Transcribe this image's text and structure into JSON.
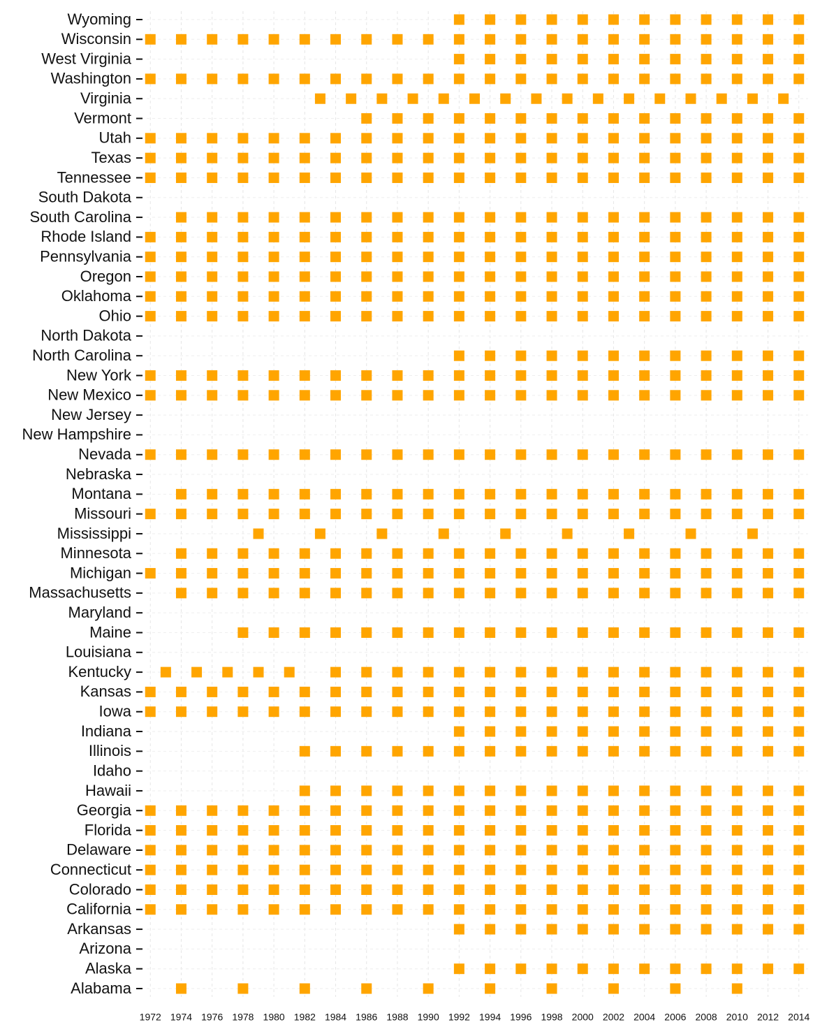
{
  "chart_data": {
    "type": "dot-matrix",
    "color": "#ffa500",
    "grid": true,
    "xlim": [
      1971.4,
      2014.6
    ],
    "xticks": [
      1972,
      1974,
      1976,
      1978,
      1980,
      1982,
      1984,
      1986,
      1988,
      1990,
      1992,
      1994,
      1996,
      1998,
      2000,
      2002,
      2004,
      2006,
      2008,
      2010,
      2012,
      2014
    ],
    "categories": [
      "Wyoming",
      "Wisconsin",
      "West Virginia",
      "Washington",
      "Virginia",
      "Vermont",
      "Utah",
      "Texas",
      "Tennessee",
      "South Dakota",
      "South Carolina",
      "Rhode Island",
      "Pennsylvania",
      "Oregon",
      "Oklahoma",
      "Ohio",
      "North Dakota",
      "North Carolina",
      "New York",
      "New Mexico",
      "New Jersey",
      "New Hampshire",
      "Nevada",
      "Nebraska",
      "Montana",
      "Missouri",
      "Mississippi",
      "Minnesota",
      "Michigan",
      "Massachusetts",
      "Maryland",
      "Maine",
      "Louisiana",
      "Kentucky",
      "Kansas",
      "Iowa",
      "Indiana",
      "Illinois",
      "Idaho",
      "Hawaii",
      "Georgia",
      "Florida",
      "Delaware",
      "Connecticut",
      "Colorado",
      "California",
      "Arkansas",
      "Arizona",
      "Alaska",
      "Alabama"
    ],
    "values": [
      [
        1992,
        1994,
        1996,
        1998,
        2000,
        2002,
        2004,
        2006,
        2008,
        2010,
        2012,
        2014
      ],
      [
        1972,
        1974,
        1976,
        1978,
        1980,
        1982,
        1984,
        1986,
        1988,
        1990,
        1992,
        1994,
        1996,
        1998,
        2000,
        2002,
        2004,
        2006,
        2008,
        2010,
        2012,
        2014
      ],
      [
        1992,
        1994,
        1996,
        1998,
        2000,
        2002,
        2004,
        2006,
        2008,
        2010,
        2012,
        2014
      ],
      [
        1972,
        1974,
        1976,
        1978,
        1980,
        1982,
        1984,
        1986,
        1988,
        1990,
        1992,
        1994,
        1996,
        1998,
        2000,
        2002,
        2004,
        2006,
        2008,
        2010,
        2012,
        2014
      ],
      [
        1983,
        1985,
        1987,
        1989,
        1991,
        1993,
        1995,
        1997,
        1999,
        2001,
        2003,
        2005,
        2007,
        2009,
        2011,
        2013
      ],
      [
        1986,
        1988,
        1990,
        1992,
        1994,
        1996,
        1998,
        2000,
        2002,
        2004,
        2006,
        2008,
        2010,
        2012,
        2014
      ],
      [
        1972,
        1974,
        1976,
        1978,
        1980,
        1982,
        1984,
        1986,
        1988,
        1990,
        1992,
        1994,
        1996,
        1998,
        2000,
        2002,
        2004,
        2006,
        2008,
        2010,
        2012,
        2014
      ],
      [
        1972,
        1974,
        1976,
        1978,
        1980,
        1982,
        1984,
        1986,
        1988,
        1990,
        1992,
        1994,
        1996,
        1998,
        2000,
        2002,
        2004,
        2006,
        2008,
        2010,
        2012,
        2014
      ],
      [
        1972,
        1974,
        1976,
        1978,
        1980,
        1982,
        1984,
        1986,
        1988,
        1990,
        1992,
        1994,
        1996,
        1998,
        2000,
        2002,
        2004,
        2006,
        2008,
        2010,
        2012,
        2014
      ],
      [],
      [
        1974,
        1976,
        1978,
        1980,
        1982,
        1984,
        1986,
        1988,
        1990,
        1992,
        1994,
        1996,
        1998,
        2000,
        2002,
        2004,
        2006,
        2008,
        2010,
        2012,
        2014
      ],
      [
        1972,
        1974,
        1976,
        1978,
        1980,
        1982,
        1984,
        1986,
        1988,
        1990,
        1992,
        1994,
        1996,
        1998,
        2000,
        2002,
        2004,
        2006,
        2008,
        2010,
        2012,
        2014
      ],
      [
        1972,
        1974,
        1976,
        1978,
        1980,
        1982,
        1984,
        1986,
        1988,
        1990,
        1992,
        1994,
        1996,
        1998,
        2000,
        2002,
        2004,
        2006,
        2008,
        2010,
        2012,
        2014
      ],
      [
        1972,
        1974,
        1976,
        1978,
        1980,
        1982,
        1984,
        1986,
        1988,
        1990,
        1992,
        1994,
        1996,
        1998,
        2000,
        2002,
        2004,
        2006,
        2008,
        2010,
        2012,
        2014
      ],
      [
        1972,
        1974,
        1976,
        1978,
        1980,
        1982,
        1984,
        1986,
        1988,
        1990,
        1992,
        1994,
        1996,
        1998,
        2000,
        2002,
        2004,
        2006,
        2008,
        2010,
        2012,
        2014
      ],
      [
        1972,
        1974,
        1976,
        1978,
        1980,
        1982,
        1984,
        1986,
        1988,
        1990,
        1992,
        1994,
        1996,
        1998,
        2000,
        2002,
        2004,
        2006,
        2008,
        2010,
        2012,
        2014
      ],
      [],
      [
        1992,
        1994,
        1996,
        1998,
        2000,
        2002,
        2004,
        2006,
        2008,
        2010,
        2012,
        2014
      ],
      [
        1972,
        1974,
        1976,
        1978,
        1980,
        1982,
        1984,
        1986,
        1988,
        1990,
        1992,
        1994,
        1996,
        1998,
        2000,
        2002,
        2004,
        2006,
        2008,
        2010,
        2012,
        2014
      ],
      [
        1972,
        1974,
        1976,
        1978,
        1980,
        1982,
        1984,
        1986,
        1988,
        1990,
        1992,
        1994,
        1996,
        1998,
        2000,
        2002,
        2004,
        2006,
        2008,
        2010,
        2012,
        2014
      ],
      [],
      [],
      [
        1972,
        1974,
        1976,
        1978,
        1980,
        1982,
        1984,
        1986,
        1988,
        1990,
        1992,
        1994,
        1996,
        1998,
        2000,
        2002,
        2004,
        2006,
        2008,
        2010,
        2012,
        2014
      ],
      [],
      [
        1974,
        1976,
        1978,
        1980,
        1982,
        1984,
        1986,
        1988,
        1990,
        1992,
        1994,
        1996,
        1998,
        2000,
        2002,
        2004,
        2006,
        2008,
        2010,
        2012,
        2014
      ],
      [
        1972,
        1974,
        1976,
        1978,
        1980,
        1982,
        1984,
        1986,
        1988,
        1990,
        1992,
        1994,
        1996,
        1998,
        2000,
        2002,
        2004,
        2006,
        2008,
        2010,
        2012,
        2014
      ],
      [
        1979,
        1983,
        1987,
        1991,
        1995,
        1999,
        2003,
        2007,
        2011
      ],
      [
        1974,
        1976,
        1978,
        1980,
        1982,
        1984,
        1986,
        1988,
        1990,
        1992,
        1994,
        1996,
        1998,
        2000,
        2002,
        2004,
        2006,
        2008,
        2010,
        2012,
        2014
      ],
      [
        1972,
        1974,
        1976,
        1978,
        1980,
        1982,
        1984,
        1986,
        1988,
        1990,
        1992,
        1994,
        1996,
        1998,
        2000,
        2002,
        2004,
        2006,
        2008,
        2010,
        2012,
        2014
      ],
      [
        1974,
        1976,
        1978,
        1980,
        1982,
        1984,
        1986,
        1988,
        1990,
        1992,
        1994,
        1996,
        1998,
        2000,
        2002,
        2004,
        2006,
        2008,
        2010,
        2012,
        2014
      ],
      [],
      [
        1978,
        1980,
        1982,
        1984,
        1986,
        1988,
        1990,
        1992,
        1994,
        1996,
        1998,
        2000,
        2002,
        2004,
        2006,
        2008,
        2010,
        2012,
        2014
      ],
      [],
      [
        1973,
        1975,
        1977,
        1979,
        1981,
        1984,
        1986,
        1988,
        1990,
        1992,
        1994,
        1996,
        1998,
        2000,
        2002,
        2004,
        2006,
        2008,
        2010,
        2012,
        2014
      ],
      [
        1972,
        1974,
        1976,
        1978,
        1980,
        1982,
        1984,
        1986,
        1988,
        1990,
        1992,
        1994,
        1996,
        1998,
        2000,
        2002,
        2004,
        2006,
        2008,
        2010,
        2012,
        2014
      ],
      [
        1972,
        1974,
        1976,
        1978,
        1980,
        1982,
        1984,
        1986,
        1988,
        1990,
        1992,
        1994,
        1996,
        1998,
        2000,
        2002,
        2004,
        2006,
        2008,
        2010,
        2012,
        2014
      ],
      [
        1992,
        1994,
        1996,
        1998,
        2000,
        2002,
        2004,
        2006,
        2008,
        2010,
        2012,
        2014
      ],
      [
        1982,
        1984,
        1986,
        1988,
        1990,
        1992,
        1994,
        1996,
        1998,
        2000,
        2002,
        2004,
        2006,
        2008,
        2010,
        2012,
        2014
      ],
      [],
      [
        1982,
        1984,
        1986,
        1988,
        1990,
        1992,
        1994,
        1996,
        1998,
        2000,
        2002,
        2004,
        2006,
        2008,
        2010,
        2012,
        2014
      ],
      [
        1972,
        1974,
        1976,
        1978,
        1980,
        1982,
        1984,
        1986,
        1988,
        1990,
        1992,
        1994,
        1996,
        1998,
        2000,
        2002,
        2004,
        2006,
        2008,
        2010,
        2012,
        2014
      ],
      [
        1972,
        1974,
        1976,
        1978,
        1980,
        1982,
        1984,
        1986,
        1988,
        1990,
        1992,
        1994,
        1996,
        1998,
        2000,
        2002,
        2004,
        2006,
        2008,
        2010,
        2012,
        2014
      ],
      [
        1972,
        1974,
        1976,
        1978,
        1980,
        1982,
        1984,
        1986,
        1988,
        1990,
        1992,
        1994,
        1996,
        1998,
        2000,
        2002,
        2004,
        2006,
        2008,
        2010,
        2012,
        2014
      ],
      [
        1972,
        1974,
        1976,
        1978,
        1980,
        1982,
        1984,
        1986,
        1988,
        1990,
        1992,
        1994,
        1996,
        1998,
        2000,
        2002,
        2004,
        2006,
        2008,
        2010,
        2012,
        2014
      ],
      [
        1972,
        1974,
        1976,
        1978,
        1980,
        1982,
        1984,
        1986,
        1988,
        1990,
        1992,
        1994,
        1996,
        1998,
        2000,
        2002,
        2004,
        2006,
        2008,
        2010,
        2012,
        2014
      ],
      [
        1972,
        1974,
        1976,
        1978,
        1980,
        1982,
        1984,
        1986,
        1988,
        1990,
        1992,
        1994,
        1996,
        1998,
        2000,
        2002,
        2004,
        2006,
        2008,
        2010,
        2012,
        2014
      ],
      [
        1992,
        1994,
        1996,
        1998,
        2000,
        2002,
        2004,
        2006,
        2008,
        2010,
        2012,
        2014
      ],
      [],
      [
        1992,
        1994,
        1996,
        1998,
        2000,
        2002,
        2004,
        2006,
        2008,
        2010,
        2012,
        2014
      ],
      [
        1974,
        1978,
        1982,
        1986,
        1990,
        1994,
        1998,
        2002,
        2006,
        2010
      ]
    ]
  }
}
